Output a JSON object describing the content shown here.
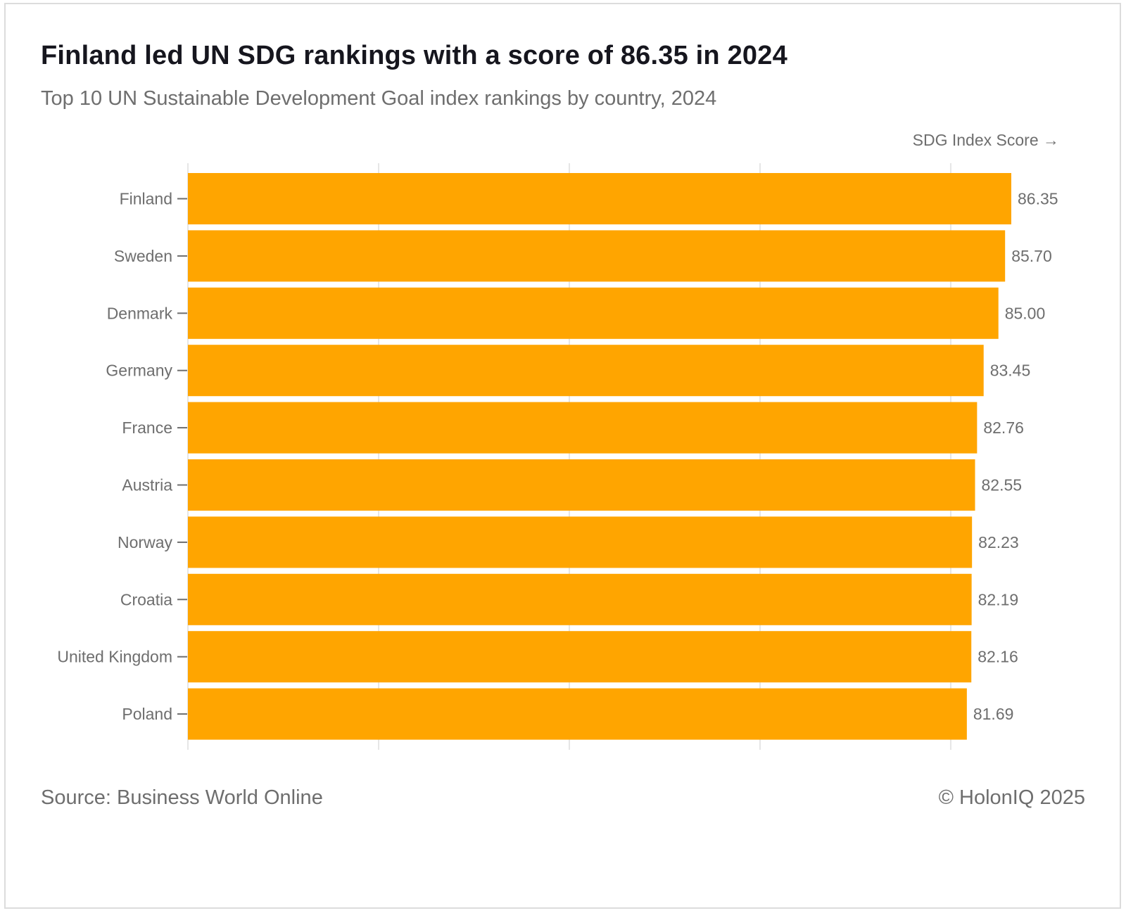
{
  "header": {
    "title": "Finland led UN SDG rankings with a score of 86.35 in 2024",
    "subtitle": "Top 10 UN Sustainable Development Goal index rankings by country, 2024"
  },
  "footer": {
    "source": "Source: Business World Online",
    "copyright": "© HolonIQ 2025"
  },
  "colors": {
    "bar": "#FFA500",
    "grid": "#e6e6e6",
    "label": "#6e6e6e",
    "axis": "#6e6e6e"
  },
  "chart_data": {
    "type": "bar",
    "orientation": "horizontal",
    "title": "Finland led UN SDG rankings with a score of 86.35 in 2024",
    "subtitle": "Top 10 UN Sustainable Development Goal index rankings by country, 2024",
    "xlabel": "SDG Index Score →",
    "ylabel": "",
    "categories": [
      "Finland",
      "Sweden",
      "Denmark",
      "Germany",
      "France",
      "Austria",
      "Norway",
      "Croatia",
      "United Kingdom",
      "Poland"
    ],
    "values": [
      86.35,
      85.7,
      85.0,
      83.45,
      82.76,
      82.55,
      82.23,
      82.19,
      82.16,
      81.69
    ],
    "value_labels": [
      "86.35",
      "85.70",
      "85.00",
      "83.45",
      "82.76",
      "82.55",
      "82.23",
      "82.19",
      "82.16",
      "81.69"
    ],
    "xlim": [
      0,
      86.35
    ],
    "gridlines_at": [
      0,
      20,
      40,
      60,
      80
    ],
    "x_tick_labels_visible": false,
    "grid": true,
    "legend": "none"
  }
}
